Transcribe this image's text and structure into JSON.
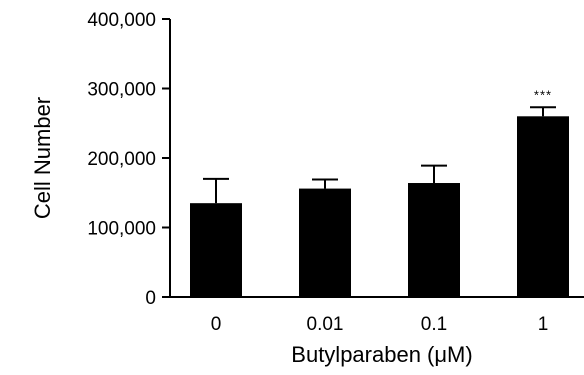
{
  "chart_data": {
    "type": "bar",
    "categories": [
      "0",
      "0.01",
      "0.1",
      "1"
    ],
    "values": [
      135000,
      156000,
      164000,
      260000
    ],
    "error_bars": [
      35000,
      13000,
      25000,
      13000
    ],
    "significance": [
      "",
      "",
      "",
      "***"
    ],
    "xlabel": "Butylparaben (μM)",
    "ylabel": "Cell Number",
    "ylim": [
      0,
      400000
    ],
    "y_ticks": [
      0,
      100000,
      200000,
      300000,
      400000
    ],
    "y_tick_labels": [
      "0",
      "100,000",
      "200,000",
      "300,000",
      "400,000"
    ],
    "grid": false,
    "legend": "none",
    "bar_color": "#000000"
  }
}
